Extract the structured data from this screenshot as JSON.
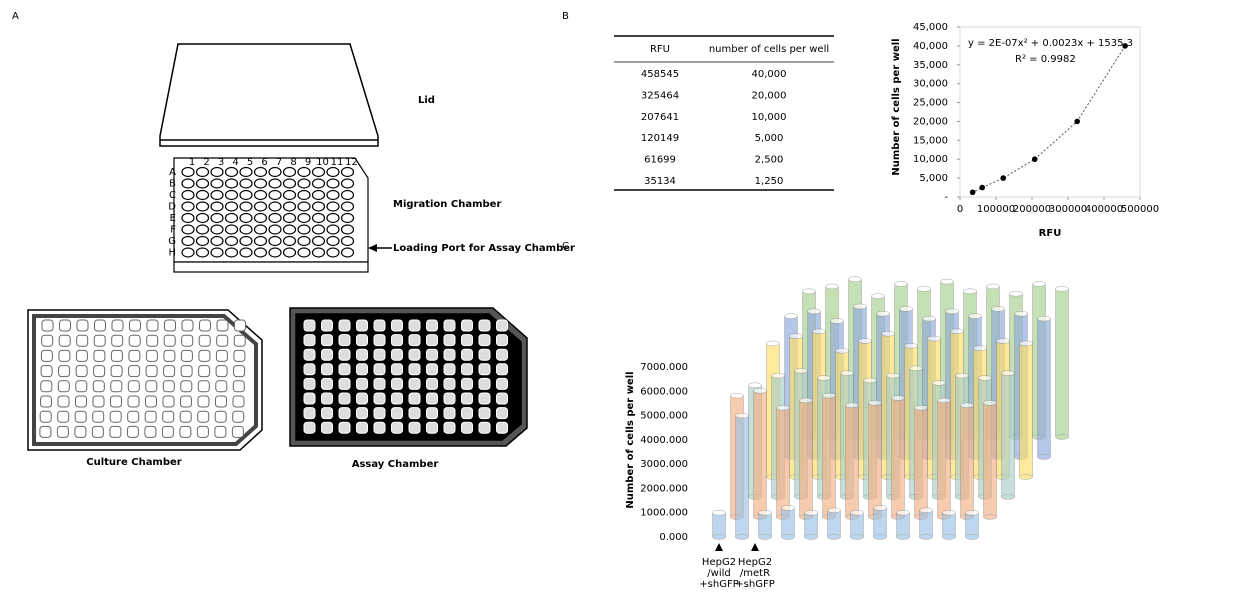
{
  "panels": {
    "a": "A",
    "b": "B",
    "c": "C"
  },
  "panel_a": {
    "lid": "Lid",
    "migration": "Migration Chamber",
    "loading": "Loading Port for Assay Chamber",
    "culture": "Culture Chamber",
    "assay": "Assay Chamber",
    "row_labels": [
      "A",
      "B",
      "C",
      "D",
      "E",
      "F",
      "G",
      "H"
    ],
    "col_labels": [
      "1",
      "2",
      "3",
      "4",
      "5",
      "6",
      "7",
      "8",
      "9",
      "10",
      "11",
      "12"
    ]
  },
  "table": {
    "header": [
      "RFU",
      "number of cells per well"
    ],
    "rows": [
      [
        "458545",
        "40,000"
      ],
      [
        "325464",
        "20,000"
      ],
      [
        "207641",
        "10,000"
      ],
      [
        "120149",
        "5,000"
      ],
      [
        "61699",
        "2,500"
      ],
      [
        "35134",
        "1,250"
      ]
    ]
  },
  "chart_data": [
    {
      "type": "scatter",
      "x_label": "RFU",
      "y_label": "Number of cells per well",
      "annotations": [
        "y = 2E-07x² + 0.0023x + 1535.3",
        "R² = 0.9982"
      ],
      "x": [
        458545,
        325464,
        207641,
        120149,
        61699,
        35134
      ],
      "values": [
        40000,
        20000,
        10000,
        5000,
        2500,
        1250
      ],
      "color": "#000000",
      "trendline": "dotted",
      "xlim": [
        0,
        500000
      ],
      "xticks": [
        0,
        100000,
        200000,
        300000,
        400000,
        500000
      ],
      "ylim": [
        0,
        45000
      ],
      "yticks": [
        {
          "value": 0,
          "label": "-"
        },
        {
          "value": 5000,
          "label": "5,000"
        },
        {
          "value": 10000,
          "label": "10,000"
        },
        {
          "value": 15000,
          "label": "15,000"
        },
        {
          "value": 20000,
          "label": "20,000"
        },
        {
          "value": 25000,
          "label": "25,000"
        },
        {
          "value": 30000,
          "label": "30,000"
        },
        {
          "value": 35000,
          "label": "35,000"
        },
        {
          "value": 40000,
          "label": "40,000"
        },
        {
          "value": 45000,
          "label": "45,000"
        }
      ]
    },
    {
      "type": "bar3d",
      "y_label": "Number of cells per well",
      "annotations": [
        [
          "HepG2",
          "/wild",
          "+shGFP"
        ],
        [
          "HepG2",
          "/metR",
          "+shGFP"
        ]
      ],
      "categories": [
        null,
        null,
        null,
        null,
        null,
        null,
        null,
        null,
        null,
        null,
        null,
        null
      ],
      "ylim": [
        0,
        7000
      ],
      "yticks": [
        {
          "value": 0,
          "label": "0.000"
        },
        {
          "value": 1000,
          "label": "1000.000"
        },
        {
          "value": 2000,
          "label": "2000.000"
        },
        {
          "value": 3000,
          "label": "3000.000"
        },
        {
          "value": 4000,
          "label": "4000.000"
        },
        {
          "value": 5000,
          "label": "5000.000"
        },
        {
          "value": 6000,
          "label": "6000.000"
        },
        {
          "value": 7000,
          "label": "7000.000"
        }
      ],
      "series": [
        {
          "color": "#9dc3e6",
          "values": [
            1000,
            5000,
            1000,
            1200,
            1000,
            1100,
            1000,
            1200,
            1000,
            1100,
            1000,
            1000
          ]
        },
        {
          "color": "#f4b183",
          "values": [
            5000,
            5200,
            4500,
            4800,
            5000,
            4600,
            4700,
            4900,
            4500,
            4800,
            4600,
            4700
          ]
        },
        {
          "color": "#a9cfc9",
          "values": [
            4600,
            5000,
            5200,
            4900,
            5100,
            4800,
            5000,
            5300,
            4700,
            5000,
            4900,
            5100
          ]
        },
        {
          "color": "#ffe066",
          "values": [
            5500,
            5800,
            6000,
            5200,
            5600,
            5900,
            5400,
            5700,
            6000,
            5300,
            5600,
            5500
          ]
        },
        {
          "color": "#8faadc",
          "values": [
            5800,
            6000,
            5600,
            6200,
            5900,
            6100,
            5700,
            6000,
            5800,
            6100,
            5900,
            5700
          ]
        },
        {
          "color": "#a9d18e",
          "values": [
            6000,
            6200,
            6500,
            5800,
            6300,
            6100,
            6400,
            6000,
            6200,
            5900,
            6300,
            6100
          ]
        }
      ]
    }
  ]
}
